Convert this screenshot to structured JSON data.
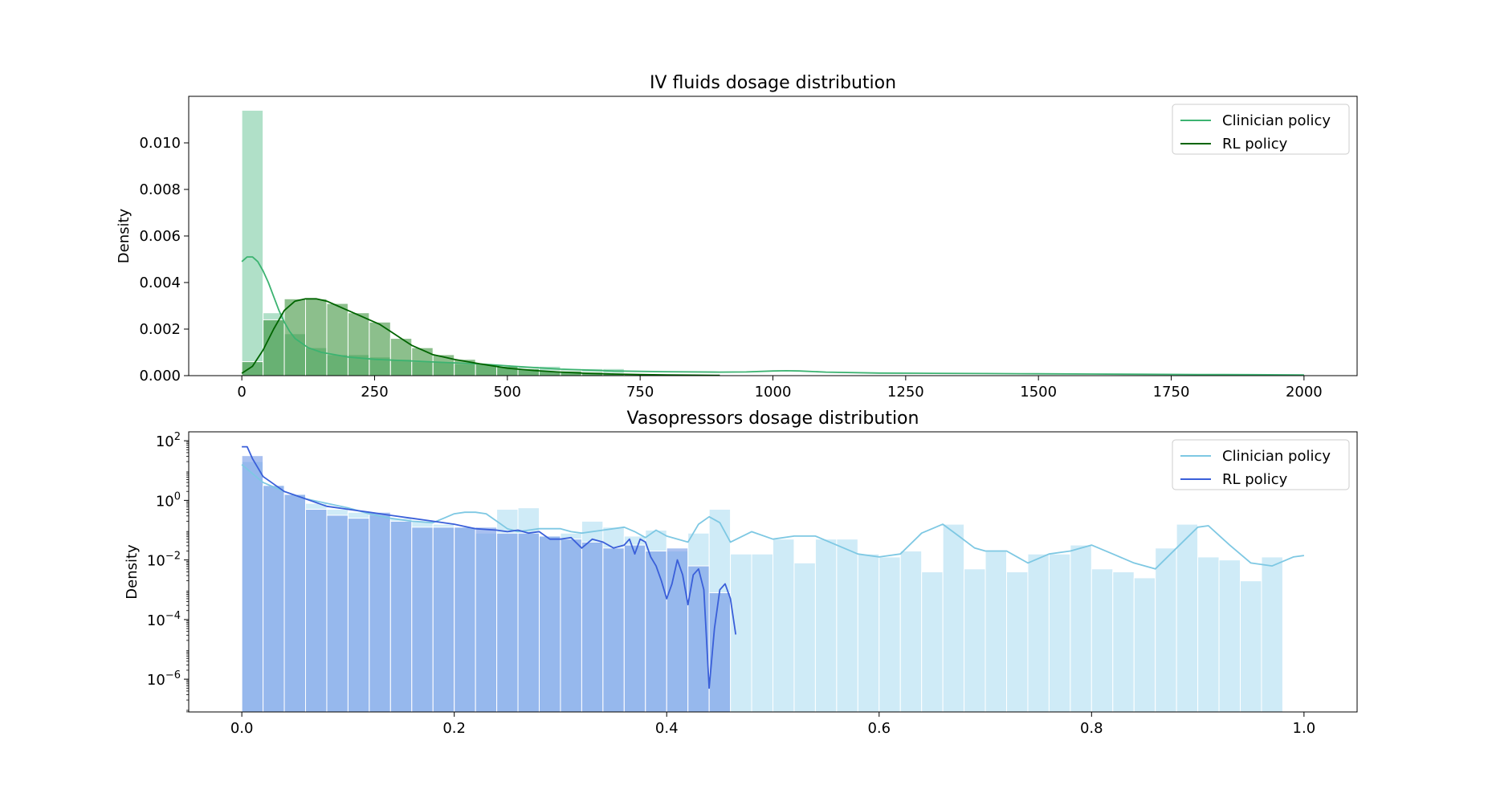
{
  "chart_data": [
    {
      "type": "histogram+kde",
      "title": "IV fluids dosage distribution",
      "xlabel": "",
      "ylabel": "Density",
      "xlim": [
        -100,
        2100
      ],
      "ylim": [
        0,
        0.012
      ],
      "yscale": "linear",
      "grid": false,
      "legend_position": "top-right",
      "x_ticks": [
        0,
        250,
        500,
        750,
        1000,
        1250,
        1500,
        1750,
        2000
      ],
      "x_tick_labels": [
        "0",
        "250",
        "500",
        "750",
        "1000",
        "1250",
        "1500",
        "1750",
        "2000"
      ],
      "y_ticks": [
        0,
        0.002,
        0.004,
        0.006,
        0.008,
        0.01
      ],
      "y_tick_labels": [
        "0.000",
        "0.002",
        "0.004",
        "0.006",
        "0.008",
        "0.010"
      ],
      "series": [
        {
          "name": "Clinician policy",
          "line_color": "#3cb371",
          "bar_color": "#8fd3b0",
          "bar_opacity": 0.7,
          "bin_start": 0,
          "bin_width": 40,
          "bar_heights": [
            0.0114,
            0.0027,
            0.0018,
            0.0012,
            0.0009,
            0.0009,
            0.0008,
            0.0007,
            0.0006,
            0.0006,
            0.0005,
            0.0005,
            0.0004,
            0.0004,
            0.0004,
            0.0003,
            0.0003,
            0.0003
          ],
          "kde_x": [
            0,
            10,
            20,
            30,
            40,
            50,
            60,
            70,
            80,
            90,
            100,
            125,
            150,
            175,
            200,
            250,
            300,
            350,
            400,
            450,
            500,
            550,
            600,
            650,
            700,
            800,
            900,
            950,
            1000,
            1025,
            1050,
            1100,
            1200,
            1300,
            1400,
            1500,
            1600,
            1700,
            1800,
            1900,
            2000
          ],
          "kde_y": [
            0.0049,
            0.0051,
            0.0051,
            0.0049,
            0.0045,
            0.004,
            0.0034,
            0.0028,
            0.0023,
            0.0019,
            0.0016,
            0.0012,
            0.001,
            0.0009,
            0.0008,
            0.0007,
            0.00065,
            0.0006,
            0.00055,
            0.0005,
            0.00042,
            0.00035,
            0.00028,
            0.00024,
            0.0002,
            0.00017,
            0.00015,
            0.00016,
            0.0002,
            0.00021,
            0.0002,
            0.00015,
            0.00011,
            0.0001,
            9e-05,
            8e-05,
            7e-05,
            6e-05,
            5e-05,
            4e-05,
            3e-05
          ]
        },
        {
          "name": "RL policy",
          "line_color": "#006400",
          "bar_color": "#2e8b2e",
          "bar_opacity": 0.55,
          "bin_start": 0,
          "bin_width": 40,
          "bar_heights": [
            0.0006,
            0.0024,
            0.0033,
            0.0033,
            0.0031,
            0.0027,
            0.0023,
            0.0016,
            0.0012,
            0.0009,
            0.0007,
            0.0005,
            0.0004,
            0.0003,
            0.0002,
            0.0002,
            0.00015,
            0.0001,
            8e-05,
            5e-05,
            3e-05
          ],
          "kde_x": [
            0,
            20,
            40,
            60,
            80,
            100,
            120,
            140,
            160,
            180,
            200,
            220,
            240,
            260,
            280,
            300,
            320,
            340,
            360,
            380,
            400,
            450,
            500,
            550,
            600,
            650,
            700,
            750,
            800,
            850,
            900
          ],
          "kde_y": [
            0.0001,
            0.0004,
            0.0011,
            0.002,
            0.0028,
            0.0032,
            0.0033,
            0.0033,
            0.0032,
            0.003,
            0.0028,
            0.0026,
            0.0024,
            0.0022,
            0.0019,
            0.0016,
            0.0013,
            0.0011,
            0.0009,
            0.0008,
            0.0007,
            0.0005,
            0.00032,
            0.00022,
            0.00015,
            0.0001,
            7e-05,
            5e-05,
            3e-05,
            2e-05,
            1e-05
          ]
        }
      ]
    },
    {
      "type": "histogram+kde",
      "title": "Vasopressors dosage distribution",
      "xlabel": "",
      "ylabel": "Density",
      "xlim": [
        -0.05,
        1.05
      ],
      "ylim_log10": [
        -7.1,
        2.3
      ],
      "yscale": "log",
      "grid": false,
      "legend_position": "top-right",
      "x_ticks": [
        0,
        0.2,
        0.4,
        0.6,
        0.8,
        1.0
      ],
      "x_tick_labels": [
        "0.0",
        "0.2",
        "0.4",
        "0.6",
        "0.8",
        "1.0"
      ],
      "y_ticks_log10": [
        2,
        0,
        -2,
        -4,
        -6
      ],
      "y_tick_labels": [
        {
          "base": "10",
          "exp": "2"
        },
        {
          "base": "10",
          "exp": "0"
        },
        {
          "base": "10",
          "exp": "−2"
        },
        {
          "base": "10",
          "exp": "−4"
        },
        {
          "base": "10",
          "exp": "−6"
        }
      ],
      "series": [
        {
          "name": "Clinician policy",
          "line_color": "#7ec8e3",
          "bar_color": "#b5e0f3",
          "bar_opacity": 0.65,
          "bin_start": 0,
          "bin_width": 0.02,
          "bar_log10": [
            1.3,
            0.5,
            0.2,
            -0.1,
            -0.3,
            -0.4,
            -0.5,
            -0.6,
            -0.7,
            -0.8,
            -0.9,
            -1.1,
            -0.3,
            -0.25,
            -1.2,
            -1.1,
            -0.7,
            -0.9,
            -1.2,
            -1.0,
            -1.7,
            -1.1,
            -0.3,
            -1.8,
            -1.8,
            -1.3,
            -2.1,
            -1.3,
            -1.3,
            -1.8,
            -1.9,
            -1.7,
            -2.4,
            -0.8,
            -2.3,
            -1.7,
            -2.4,
            -1.8,
            -1.8,
            -1.5,
            -2.3,
            -2.4,
            -2.6,
            -1.6,
            -0.8,
            -1.9,
            -2.0,
            -2.7,
            -1.9
          ],
          "kde_x": [
            0,
            0.01,
            0.02,
            0.04,
            0.06,
            0.08,
            0.1,
            0.12,
            0.14,
            0.16,
            0.18,
            0.19,
            0.2,
            0.21,
            0.22,
            0.23,
            0.24,
            0.25,
            0.26,
            0.27,
            0.28,
            0.3,
            0.31,
            0.32,
            0.34,
            0.36,
            0.37,
            0.38,
            0.39,
            0.4,
            0.42,
            0.43,
            0.44,
            0.45,
            0.46,
            0.48,
            0.5,
            0.52,
            0.54,
            0.56,
            0.58,
            0.6,
            0.62,
            0.64,
            0.66,
            0.675,
            0.69,
            0.7,
            0.72,
            0.74,
            0.76,
            0.78,
            0.8,
            0.82,
            0.84,
            0.86,
            0.88,
            0.9,
            0.91,
            0.93,
            0.95,
            0.97,
            0.99,
            1.0
          ],
          "kde_y_log10": [
            1.2,
            0.9,
            0.6,
            0.3,
            0.05,
            -0.1,
            -0.25,
            -0.45,
            -0.6,
            -0.7,
            -0.75,
            -0.6,
            -0.45,
            -0.4,
            -0.4,
            -0.45,
            -0.7,
            -0.95,
            -1.05,
            -1.0,
            -0.95,
            -0.95,
            -1.05,
            -1.1,
            -1.0,
            -0.9,
            -1.05,
            -1.25,
            -1.0,
            -1.2,
            -1.4,
            -0.8,
            -0.55,
            -0.75,
            -1.4,
            -1.05,
            -1.3,
            -1.2,
            -1.2,
            -1.5,
            -1.8,
            -1.9,
            -1.8,
            -1.1,
            -0.8,
            -1.2,
            -1.6,
            -1.7,
            -1.7,
            -2.1,
            -1.8,
            -1.7,
            -1.5,
            -1.8,
            -2.1,
            -2.3,
            -1.6,
            -0.9,
            -0.85,
            -1.5,
            -2.1,
            -2.2,
            -1.9,
            -1.85
          ]
        },
        {
          "name": "RL policy",
          "line_color": "#3a5fd9",
          "bar_color": "#6f96e6",
          "bar_opacity": 0.6,
          "bin_start": 0,
          "bin_width": 0.02,
          "bar_log10": [
            1.5,
            0.5,
            0.2,
            -0.3,
            -0.5,
            -0.6,
            -0.4,
            -0.7,
            -0.9,
            -0.9,
            -0.9,
            -0.9,
            -1.1,
            -1.1,
            -1.2,
            -1.3,
            -1.4,
            -1.6,
            -1.5,
            -1.7,
            -1.6,
            -2.2,
            -3.1
          ],
          "kde_x": [
            0,
            0.005,
            0.01,
            0.02,
            0.04,
            0.06,
            0.08,
            0.1,
            0.12,
            0.14,
            0.16,
            0.18,
            0.2,
            0.22,
            0.24,
            0.25,
            0.26,
            0.27,
            0.28,
            0.29,
            0.3,
            0.31,
            0.32,
            0.33,
            0.34,
            0.35,
            0.36,
            0.365,
            0.37,
            0.375,
            0.38,
            0.385,
            0.39,
            0.395,
            0.4,
            0.405,
            0.41,
            0.415,
            0.42,
            0.425,
            0.43,
            0.435,
            0.44,
            0.445,
            0.45,
            0.455,
            0.46,
            0.465
          ],
          "kde_y_log10": [
            1.8,
            1.8,
            1.4,
            0.8,
            0.3,
            0.05,
            -0.2,
            -0.3,
            -0.4,
            -0.5,
            -0.6,
            -0.7,
            -0.8,
            -0.95,
            -1.0,
            -1.05,
            -1.0,
            -1.1,
            -1.05,
            -1.3,
            -1.3,
            -1.25,
            -1.6,
            -1.3,
            -1.4,
            -1.6,
            -1.5,
            -1.3,
            -1.8,
            -1.3,
            -1.4,
            -1.9,
            -2.2,
            -2.7,
            -3.3,
            -2.8,
            -2.0,
            -2.5,
            -3.5,
            -2.5,
            -2.3,
            -3.0,
            -6.3,
            -4.3,
            -3.0,
            -2.8,
            -3.3,
            -4.5
          ]
        }
      ]
    }
  ]
}
